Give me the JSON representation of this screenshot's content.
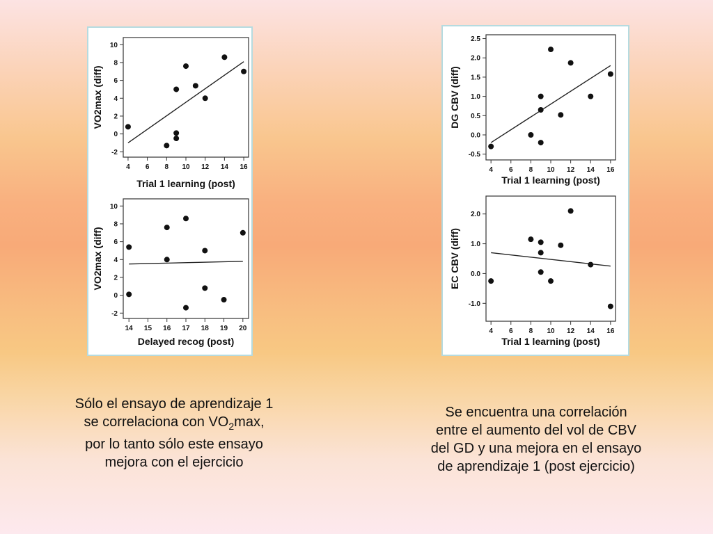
{
  "chart_data": [
    {
      "id": "left-top",
      "type": "scatter",
      "title": "",
      "xlabel": "Trial 1 learning (post)",
      "ylabel": "VO2max (diff)",
      "xlim": [
        3.5,
        16.5
      ],
      "ylim": [
        -2.6,
        10.8
      ],
      "xticks": [
        4,
        6,
        8,
        10,
        12,
        14,
        16
      ],
      "yticks": [
        -2,
        0,
        2,
        4,
        6,
        8,
        10
      ],
      "ytick_labels": [
        "-2",
        "0",
        "2",
        "4",
        "6",
        "8",
        "10"
      ],
      "points": [
        [
          4,
          0.8
        ],
        [
          8,
          -1.3
        ],
        [
          9,
          0.1
        ],
        [
          9,
          -0.5
        ],
        [
          9,
          5
        ],
        [
          10,
          7.6
        ],
        [
          11,
          5.4
        ],
        [
          12,
          4
        ],
        [
          14,
          8.6
        ],
        [
          16,
          7
        ]
      ],
      "fit": [
        [
          4,
          -1
        ],
        [
          16,
          8.1
        ]
      ]
    },
    {
      "id": "left-bottom",
      "type": "scatter",
      "title": "",
      "xlabel": "Delayed recog (post)",
      "ylabel": "VO2max (diff)",
      "xlim": [
        13.7,
        20.3
      ],
      "ylim": [
        -2.6,
        10.8
      ],
      "xticks": [
        14,
        15,
        16,
        17,
        18,
        19,
        20
      ],
      "yticks": [
        -2,
        0,
        2,
        4,
        6,
        8,
        10
      ],
      "ytick_labels": [
        "-2",
        "0",
        "2",
        "4",
        "6",
        "8",
        "10"
      ],
      "points": [
        [
          14,
          5.4
        ],
        [
          14,
          0.1
        ],
        [
          16,
          7.6
        ],
        [
          16,
          4
        ],
        [
          17,
          8.6
        ],
        [
          17,
          -1.4
        ],
        [
          18,
          5
        ],
        [
          18,
          0.8
        ],
        [
          19,
          -0.5
        ],
        [
          20,
          7
        ]
      ],
      "fit": [
        [
          14,
          3.5
        ],
        [
          20,
          3.8
        ]
      ]
    },
    {
      "id": "right-top",
      "type": "scatter",
      "title": "",
      "xlabel": "Trial 1 learning (post)",
      "ylabel": "DG CBV (diff)",
      "xlim": [
        3.5,
        16.5
      ],
      "ylim": [
        -0.65,
        2.6
      ],
      "xticks": [
        4,
        6,
        8,
        10,
        12,
        14,
        16
      ],
      "yticks": [
        -0.5,
        0,
        0.5,
        1,
        1.5,
        2,
        2.5
      ],
      "ytick_labels": [
        "-0.5",
        "0.0",
        "0.5",
        "1.0",
        "1.5",
        "2.0",
        "2.5"
      ],
      "points": [
        [
          4,
          -0.3
        ],
        [
          8,
          0
        ],
        [
          9,
          -0.2
        ],
        [
          9,
          0.65
        ],
        [
          9,
          1
        ],
        [
          10,
          2.22
        ],
        [
          11,
          0.52
        ],
        [
          12,
          1.87
        ],
        [
          14,
          1
        ],
        [
          16,
          1.58
        ]
      ],
      "fit": [
        [
          4,
          -0.2
        ],
        [
          16,
          1.8
        ]
      ]
    },
    {
      "id": "right-bottom",
      "type": "scatter",
      "title": "",
      "xlabel": "Trial 1 learning (post)",
      "ylabel": "EC CBV (diff)",
      "xlim": [
        3.5,
        16.5
      ],
      "ylim": [
        -1.6,
        2.6
      ],
      "xticks": [
        4,
        6,
        8,
        10,
        12,
        14,
        16
      ],
      "yticks": [
        -1,
        0,
        1,
        2
      ],
      "ytick_labels": [
        "-1.0",
        "0.0",
        "1.0",
        "2.0"
      ],
      "points": [
        [
          4,
          -0.25
        ],
        [
          8,
          1.15
        ],
        [
          9,
          1.05
        ],
        [
          9,
          0.7
        ],
        [
          9,
          0.05
        ],
        [
          10,
          -0.25
        ],
        [
          11,
          0.95
        ],
        [
          12,
          2.1
        ],
        [
          14,
          0.3
        ],
        [
          16,
          -1.1
        ]
      ],
      "fit": [
        [
          4,
          0.7
        ],
        [
          16,
          0.25
        ]
      ]
    }
  ],
  "captions": {
    "left": {
      "line1": "Sólo el ensayo de aprendizaje 1",
      "line2_pre": "se correlaciona con VO",
      "line2_sub": "2",
      "line2_post": "max,",
      "line3": "por lo tanto sólo este ensayo",
      "line4": "mejora con el ejercicio"
    },
    "right": {
      "line1": "Se encuentra una correlación",
      "line2": "entre el aumento del vol de CBV",
      "line3": "del GD y una mejora en el ensayo",
      "line4": "de aprendizaje 1 (post ejercicio)"
    }
  }
}
